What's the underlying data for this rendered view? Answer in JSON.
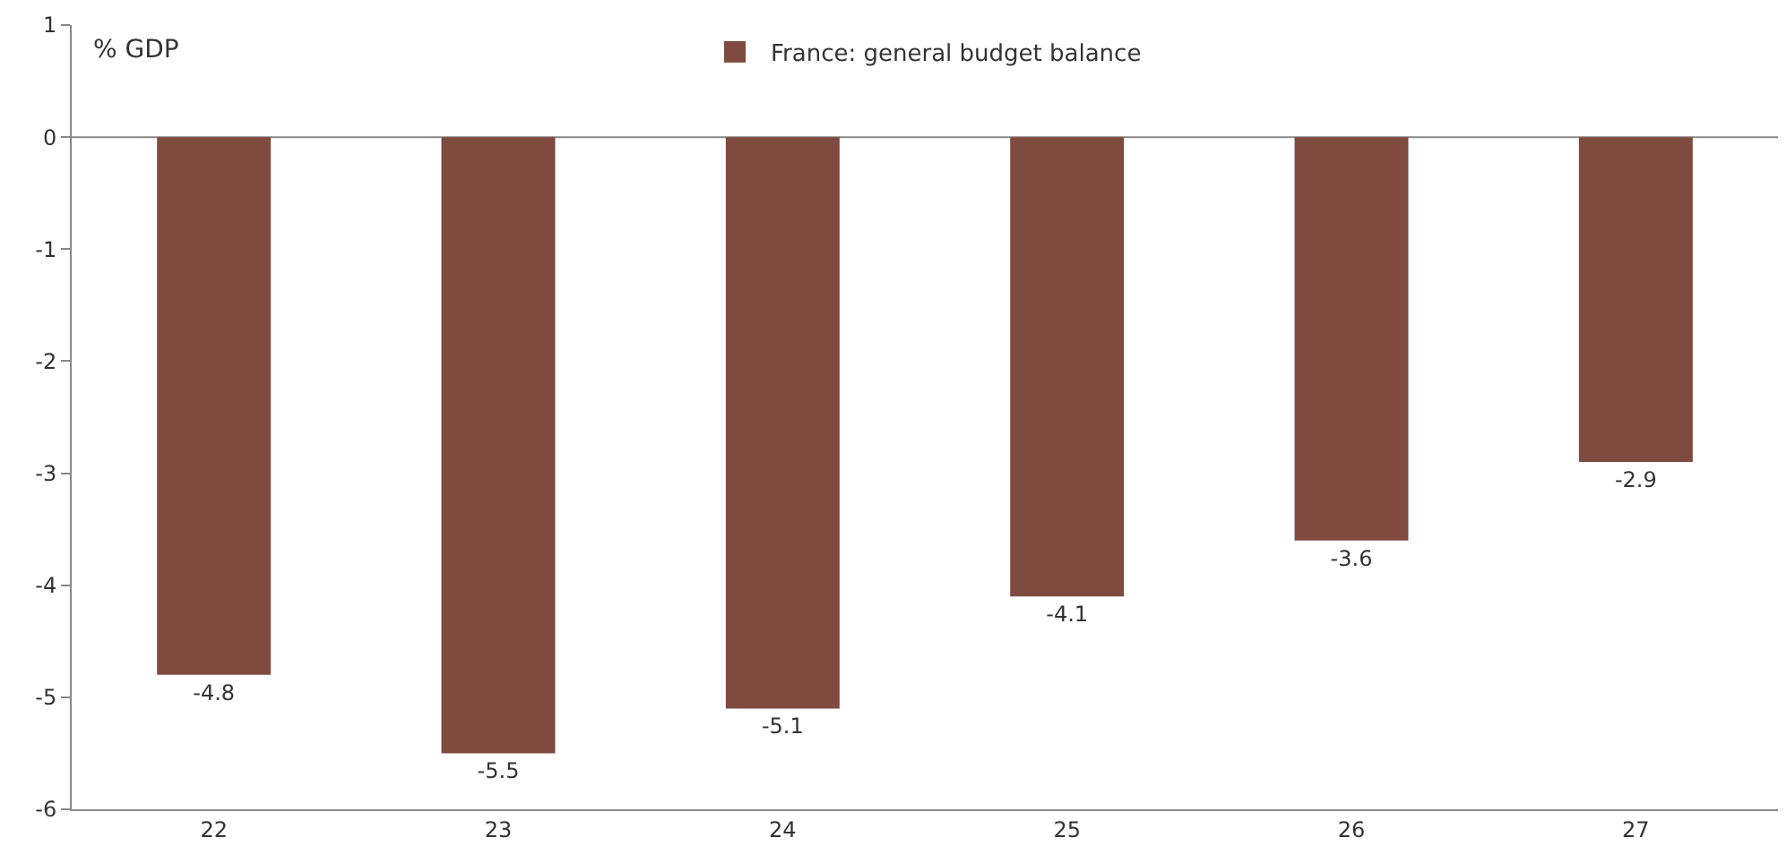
{
  "chart_data": {
    "type": "bar",
    "ylabel": "% GDP",
    "categories": [
      "22",
      "23",
      "24",
      "25",
      "26",
      "27"
    ],
    "series": [
      {
        "name": "France: general budget balance",
        "color": "#7f4a3f",
        "values": [
          -4.8,
          -5.5,
          -5.1,
          -4.1,
          -3.6,
          -2.9
        ]
      }
    ],
    "ylim": [
      -6,
      1
    ],
    "yticks": [
      -6,
      -5,
      -4,
      -3,
      -2,
      -1,
      0,
      1
    ],
    "data_labels": true,
    "legend": "top"
  }
}
